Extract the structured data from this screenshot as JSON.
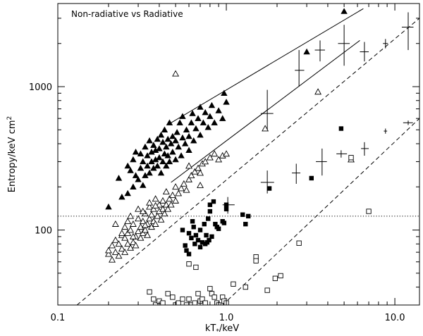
{
  "chart_data": {
    "type": "scatter",
    "title": "Non-radiative vs Radiative",
    "xlabel": "kT",
    "xlabel_subscript": "*",
    "xlabel_suffix": "/keV",
    "ylabel": "Entropy/keV cm",
    "ylabel_sup": "2",
    "xscale": "log",
    "yscale": "log",
    "xlim": [
      0.1,
      14
    ],
    "ylim": [
      30,
      3800
    ],
    "x_ticks": [
      {
        "value": 0.1,
        "label": "0.1"
      },
      {
        "value": 1.0,
        "label": "1.0"
      },
      {
        "value": 10.0,
        "label": "10.0"
      }
    ],
    "y_ticks": [
      {
        "value": 100,
        "label": "100"
      },
      {
        "value": 1000,
        "label": "1000"
      }
    ],
    "series": [
      {
        "marker": "filled-triangle",
        "points": [
          [
            0.2,
            145
          ],
          [
            0.23,
            230
          ],
          [
            0.24,
            170
          ],
          [
            0.26,
            180
          ],
          [
            0.26,
            280
          ],
          [
            0.27,
            260
          ],
          [
            0.28,
            200
          ],
          [
            0.28,
            310
          ],
          [
            0.29,
            240
          ],
          [
            0.29,
            350
          ],
          [
            0.3,
            225
          ],
          [
            0.31,
            270
          ],
          [
            0.31,
            340
          ],
          [
            0.32,
            205
          ],
          [
            0.32,
            300
          ],
          [
            0.33,
            240
          ],
          [
            0.33,
            380
          ],
          [
            0.34,
            280
          ],
          [
            0.34,
            330
          ],
          [
            0.35,
            250
          ],
          [
            0.35,
            420
          ],
          [
            0.36,
            300
          ],
          [
            0.36,
            350
          ],
          [
            0.37,
            270
          ],
          [
            0.37,
            390
          ],
          [
            0.38,
            310
          ],
          [
            0.38,
            360
          ],
          [
            0.39,
            280
          ],
          [
            0.39,
            430
          ],
          [
            0.4,
            320
          ],
          [
            0.4,
            370
          ],
          [
            0.41,
            250
          ],
          [
            0.41,
            460
          ],
          [
            0.42,
            300
          ],
          [
            0.42,
            410
          ],
          [
            0.43,
            340
          ],
          [
            0.43,
            500
          ],
          [
            0.44,
            280
          ],
          [
            0.44,
            380
          ],
          [
            0.45,
            430
          ],
          [
            0.45,
            330
          ],
          [
            0.46,
            560
          ],
          [
            0.46,
            300
          ],
          [
            0.47,
            400
          ],
          [
            0.48,
            450
          ],
          [
            0.48,
            350
          ],
          [
            0.5,
            420
          ],
          [
            0.5,
            310
          ],
          [
            0.51,
            480
          ],
          [
            0.52,
            380
          ],
          [
            0.53,
            560
          ],
          [
            0.54,
            330
          ],
          [
            0.55,
            440
          ],
          [
            0.55,
            620
          ],
          [
            0.57,
            400
          ],
          [
            0.58,
            500
          ],
          [
            0.6,
            360
          ],
          [
            0.6,
            450
          ],
          [
            0.62,
            560
          ],
          [
            0.63,
            650
          ],
          [
            0.64,
            420
          ],
          [
            0.66,
            510
          ],
          [
            0.68,
            600
          ],
          [
            0.7,
            460
          ],
          [
            0.7,
            720
          ],
          [
            0.73,
            560
          ],
          [
            0.75,
            660
          ],
          [
            0.78,
            520
          ],
          [
            0.8,
            620
          ],
          [
            0.82,
            740
          ],
          [
            0.85,
            560
          ],
          [
            0.9,
            680
          ],
          [
            0.95,
            600
          ],
          [
            1.0,
            780
          ],
          [
            0.97,
            900
          ],
          [
            3.0,
            1750
          ],
          [
            5.0,
            3350
          ]
        ]
      },
      {
        "marker": "open-triangle",
        "points": [
          [
            0.2,
            68
          ],
          [
            0.2,
            72
          ],
          [
            0.21,
            62
          ],
          [
            0.21,
            78
          ],
          [
            0.22,
            70
          ],
          [
            0.22,
            85
          ],
          [
            0.23,
            66
          ],
          [
            0.23,
            80
          ],
          [
            0.24,
            74
          ],
          [
            0.24,
            92
          ],
          [
            0.25,
            70
          ],
          [
            0.25,
            88
          ],
          [
            0.26,
            80
          ],
          [
            0.26,
            95
          ],
          [
            0.27,
            75
          ],
          [
            0.27,
            100
          ],
          [
            0.28,
            82
          ],
          [
            0.28,
            110
          ],
          [
            0.29,
            90
          ],
          [
            0.29,
            78
          ],
          [
            0.3,
            98
          ],
          [
            0.3,
            120
          ],
          [
            0.31,
            88
          ],
          [
            0.31,
            105
          ],
          [
            0.32,
            95
          ],
          [
            0.32,
            115
          ],
          [
            0.33,
            100
          ],
          [
            0.33,
            130
          ],
          [
            0.34,
            92
          ],
          [
            0.34,
            110
          ],
          [
            0.35,
            120
          ],
          [
            0.35,
            145
          ],
          [
            0.36,
            105
          ],
          [
            0.36,
            128
          ],
          [
            0.37,
            115
          ],
          [
            0.37,
            140
          ],
          [
            0.38,
            110
          ],
          [
            0.38,
            165
          ],
          [
            0.39,
            125
          ],
          [
            0.4,
            135
          ],
          [
            0.4,
            150
          ],
          [
            0.41,
            118
          ],
          [
            0.42,
            140
          ],
          [
            0.42,
            160
          ],
          [
            0.43,
            130
          ],
          [
            0.44,
            150
          ],
          [
            0.44,
            185
          ],
          [
            0.45,
            140
          ],
          [
            0.46,
            165
          ],
          [
            0.47,
            150
          ],
          [
            0.48,
            175
          ],
          [
            0.5,
            160
          ],
          [
            0.5,
            200
          ],
          [
            0.52,
            180
          ],
          [
            0.54,
            195
          ],
          [
            0.56,
            210
          ],
          [
            0.58,
            190
          ],
          [
            0.6,
            225
          ],
          [
            0.62,
            240
          ],
          [
            0.65,
            255
          ],
          [
            0.68,
            270
          ],
          [
            0.7,
            250
          ],
          [
            0.72,
            290
          ],
          [
            0.75,
            300
          ],
          [
            0.8,
            320
          ],
          [
            0.85,
            340
          ],
          [
            0.9,
            310
          ],
          [
            0.95,
            330
          ],
          [
            1.0,
            340
          ],
          [
            0.22,
            110
          ],
          [
            0.25,
            105
          ],
          [
            0.27,
            125
          ],
          [
            0.3,
            140
          ],
          [
            0.32,
            135
          ],
          [
            0.35,
            155
          ],
          [
            0.5,
            1230
          ],
          [
            0.6,
            280
          ],
          [
            0.7,
            205
          ],
          [
            1.7,
            510
          ],
          [
            3.5,
            920
          ],
          [
            5.5,
            310
          ],
          [
            0.24,
            95
          ],
          [
            0.26,
            115
          ],
          [
            0.28,
            90
          ],
          [
            0.33,
            108
          ],
          [
            0.38,
            148
          ]
        ]
      },
      {
        "marker": "filled-square",
        "points": [
          [
            0.55,
            100
          ],
          [
            0.57,
            78
          ],
          [
            0.6,
            95
          ],
          [
            0.6,
            68
          ],
          [
            0.62,
            88
          ],
          [
            0.64,
            105
          ],
          [
            0.65,
            80
          ],
          [
            0.66,
            92
          ],
          [
            0.68,
            85
          ],
          [
            0.7,
            100
          ],
          [
            0.7,
            76
          ],
          [
            0.72,
            82
          ],
          [
            0.74,
            110
          ],
          [
            0.75,
            80
          ],
          [
            0.77,
            82
          ],
          [
            0.78,
            120
          ],
          [
            0.79,
            85
          ],
          [
            0.8,
            135
          ],
          [
            0.8,
            150
          ],
          [
            0.82,
            90
          ],
          [
            0.84,
            158
          ],
          [
            0.86,
            110
          ],
          [
            0.88,
            105
          ],
          [
            0.9,
            102
          ],
          [
            0.95,
            115
          ],
          [
            0.97,
            112
          ],
          [
            1.0,
            150
          ],
          [
            1.0,
            140
          ],
          [
            1.25,
            128
          ],
          [
            1.3,
            110
          ],
          [
            1.35,
            125
          ],
          [
            1.8,
            195
          ],
          [
            3.2,
            230
          ],
          [
            4.8,
            510
          ],
          [
            0.58,
            72
          ],
          [
            0.63,
            115
          ],
          [
            0.76,
            92
          ]
        ]
      },
      {
        "marker": "open-square",
        "points": [
          [
            0.35,
            37
          ],
          [
            0.37,
            33
          ],
          [
            0.38,
            30
          ],
          [
            0.4,
            32
          ],
          [
            0.42,
            31
          ],
          [
            0.45,
            36
          ],
          [
            0.48,
            34
          ],
          [
            0.5,
            30
          ],
          [
            0.52,
            31
          ],
          [
            0.55,
            33
          ],
          [
            0.58,
            30
          ],
          [
            0.6,
            33
          ],
          [
            0.62,
            30
          ],
          [
            0.65,
            31
          ],
          [
            0.68,
            36
          ],
          [
            0.7,
            32
          ],
          [
            0.72,
            33
          ],
          [
            0.75,
            31
          ],
          [
            0.8,
            39
          ],
          [
            0.82,
            36
          ],
          [
            0.85,
            34
          ],
          [
            0.88,
            31
          ],
          [
            0.9,
            30
          ],
          [
            0.95,
            34
          ],
          [
            0.97,
            32
          ],
          [
            1.0,
            31
          ],
          [
            0.6,
            58
          ],
          [
            0.66,
            55
          ],
          [
            1.1,
            42
          ],
          [
            1.3,
            40
          ],
          [
            1.5,
            65
          ],
          [
            1.5,
            61
          ],
          [
            1.75,
            38
          ],
          [
            1.95,
            46
          ],
          [
            2.7,
            81
          ],
          [
            5.5,
            320
          ],
          [
            7.0,
            135
          ],
          [
            2.1,
            48
          ]
        ]
      },
      {
        "marker": "cross-errorbar",
        "points": [
          {
            "x": 1.02,
            "y": 150,
            "ylo": 130,
            "yhi": 170,
            "xlo": 0.95,
            "xhi": 1.12
          },
          {
            "x": 1.75,
            "y": 650,
            "ylo": 500,
            "yhi": 950,
            "xlo": 1.6,
            "xhi": 1.9
          },
          {
            "x": 1.75,
            "y": 215,
            "ylo": 180,
            "yhi": 260,
            "xlo": 1.6,
            "xhi": 1.92
          },
          {
            "x": 2.6,
            "y": 250,
            "ylo": 210,
            "yhi": 290,
            "xlo": 2.45,
            "xhi": 2.75
          },
          {
            "x": 2.7,
            "y": 1300,
            "ylo": 1000,
            "yhi": 1800,
            "xlo": 2.55,
            "xhi": 2.9
          },
          {
            "x": 3.6,
            "y": 1800,
            "ylo": 1500,
            "yhi": 2100,
            "xlo": 3.35,
            "xhi": 3.85
          },
          {
            "x": 3.7,
            "y": 300,
            "ylo": 240,
            "yhi": 370,
            "xlo": 3.4,
            "xhi": 3.95
          },
          {
            "x": 4.8,
            "y": 340,
            "ylo": 320,
            "yhi": 360,
            "xlo": 4.5,
            "xhi": 5.2
          },
          {
            "x": 5.0,
            "y": 2000,
            "ylo": 1400,
            "yhi": 2700,
            "xlo": 4.6,
            "xhi": 5.4
          },
          {
            "x": 6.6,
            "y": 1750,
            "ylo": 1500,
            "yhi": 2050,
            "xlo": 6.2,
            "xhi": 7.0
          },
          {
            "x": 6.6,
            "y": 370,
            "ylo": 330,
            "yhi": 410,
            "xlo": 6.3,
            "xhi": 7.0
          },
          {
            "x": 8.8,
            "y": 2000,
            "ylo": 1850,
            "yhi": 2150,
            "xlo": 8.5,
            "xhi": 9.1
          },
          {
            "x": 8.8,
            "y": 490,
            "ylo": 470,
            "yhi": 510,
            "xlo": 8.6,
            "xhi": 9.0
          },
          {
            "x": 12.0,
            "y": 2600,
            "ylo": 1800,
            "yhi": 3300,
            "xlo": 11.0,
            "xhi": 12.9
          },
          {
            "x": 12.0,
            "y": 560,
            "ylo": 540,
            "yhi": 580,
            "xlo": 11.2,
            "xhi": 12.8
          }
        ]
      }
    ],
    "lines": [
      {
        "style": "solid",
        "points": [
          [
            0.47,
            560
          ],
          [
            6.5,
            3500
          ]
        ]
      },
      {
        "style": "solid",
        "points": [
          [
            0.47,
            215
          ],
          [
            6.2,
            2100
          ]
        ]
      },
      {
        "style": "dashed",
        "points": [
          [
            0.13,
            30
          ],
          [
            14,
            3000
          ]
        ]
      },
      {
        "style": "dashed",
        "points": [
          [
            0.95,
            30
          ],
          [
            14,
            600
          ]
        ]
      },
      {
        "style": "dotted",
        "points": [
          [
            0.1,
            125
          ],
          [
            14,
            125
          ]
        ]
      }
    ]
  }
}
